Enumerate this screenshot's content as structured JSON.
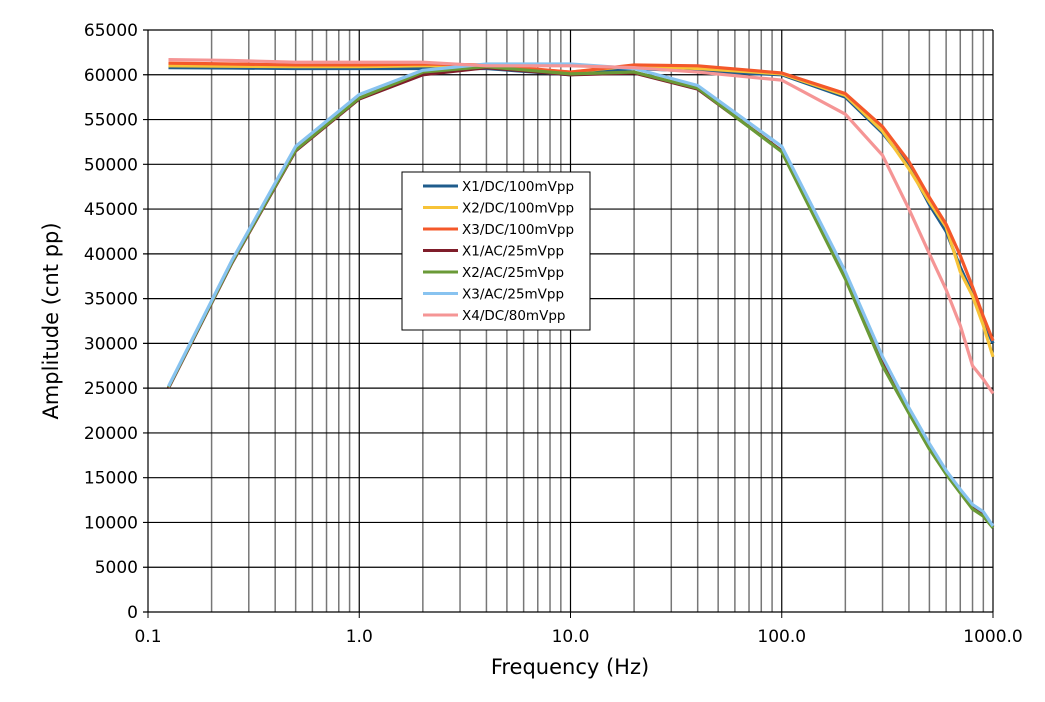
{
  "chart_data": {
    "type": "line",
    "title": "",
    "xlabel": "Frequency (Hz)",
    "ylabel": "Amplitude (cnt pp)",
    "xscale": "log",
    "xlim": [
      0.1,
      1000
    ],
    "ylim": [
      0,
      65000
    ],
    "grid": true,
    "legend_position": "center-left",
    "x_tick_labels": [
      "0.1",
      "1.0",
      "10.0",
      "100.0",
      "1000.0"
    ],
    "y_tick_labels": [
      "0",
      "5000",
      "10000",
      "15000",
      "20000",
      "25000",
      "30000",
      "35000",
      "40000",
      "45000",
      "50000",
      "55000",
      "60000",
      "65000"
    ],
    "x": [
      0.125,
      0.25,
      0.5,
      1,
      2,
      4,
      10,
      20,
      40,
      100,
      200,
      300,
      400,
      500,
      600,
      700,
      800,
      900,
      1000
    ],
    "series": [
      {
        "name": "X1/DC/100mVpp",
        "color": "#1f5c8c",
        "values": [
          60800,
          60750,
          60700,
          60700,
          60700,
          60700,
          60000,
          60700,
          60400,
          60000,
          57500,
          53500,
          49800,
          45500,
          42500,
          38500,
          35500,
          32500,
          30000
        ]
      },
      {
        "name": "X2/DC/100mVpp",
        "color": "#f7c338",
        "values": [
          61000,
          60950,
          60900,
          60900,
          61000,
          61000,
          60300,
          61000,
          60700,
          60100,
          57700,
          53700,
          49500,
          45800,
          43000,
          38000,
          35300,
          32000,
          28500
        ]
      },
      {
        "name": "X3/DC/100mVpp",
        "color": "#f4582a",
        "values": [
          61300,
          61200,
          61100,
          61100,
          61200,
          61100,
          60300,
          61100,
          61000,
          60200,
          57900,
          54200,
          50300,
          46300,
          43300,
          39800,
          36300,
          33000,
          30300
        ]
      },
      {
        "name": "X1/AC/25mVpp",
        "color": "#7f1d2a",
        "values": [
          25000,
          39000,
          51500,
          57300,
          60000,
          60800,
          60000,
          60200,
          58400,
          51500,
          37500,
          28000,
          22500,
          18500,
          15500,
          13500,
          11700,
          11000,
          9500
        ]
      },
      {
        "name": "X2/AC/25mVpp",
        "color": "#6a9a37",
        "values": [
          25100,
          39100,
          51600,
          57400,
          60300,
          60900,
          60100,
          60300,
          58500,
          51400,
          37200,
          27500,
          22200,
          18200,
          15400,
          13300,
          11500,
          10700,
          9400
        ]
      },
      {
        "name": "X3/AC/25mVpp",
        "color": "#88c3f0",
        "values": [
          25200,
          39300,
          52000,
          57800,
          60500,
          61200,
          61200,
          60700,
          58800,
          52000,
          38000,
          28500,
          22800,
          18800,
          15800,
          13700,
          12000,
          11200,
          9600
        ]
      },
      {
        "name": "X4/DC/80mVpp",
        "color": "#f59595",
        "values": [
          61700,
          61600,
          61400,
          61400,
          61400,
          61000,
          61000,
          60800,
          60300,
          59400,
          55600,
          51000,
          45000,
          40000,
          36000,
          32000,
          27500,
          26000,
          24400
        ]
      }
    ]
  }
}
